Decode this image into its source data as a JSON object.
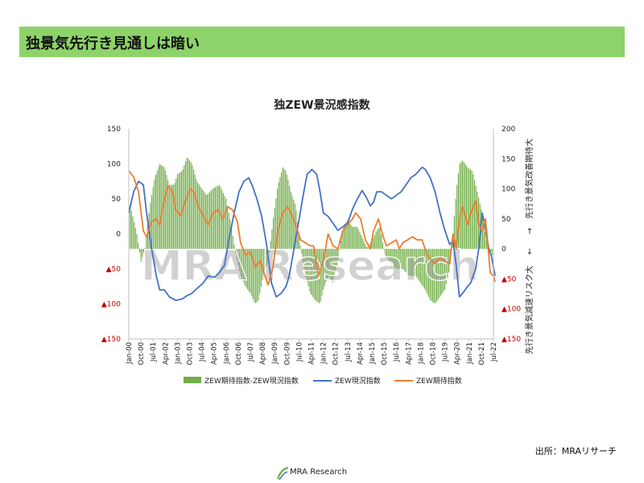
{
  "page": {
    "title": "独景気先行き見通しは暗い",
    "source": "出所：MRAリサーチ"
  },
  "watermark": "MRA Research",
  "footer_logo": "MRA Research",
  "colors": {
    "banner": "#8ed36a",
    "bars": "#70ad47",
    "current": "#4472c4",
    "expect": "#ed7d31",
    "negative_label": "#c00000"
  },
  "chart_data": {
    "type": "bar",
    "title": "独ZEW景況感指数",
    "left_axis": {
      "ylim": [
        -150,
        150
      ],
      "ticks": [
        150,
        100,
        50,
        0,
        -50,
        -100,
        -150
      ],
      "tick_labels": [
        "150",
        "100",
        "50",
        "0",
        "▲50",
        "▲100",
        "▲150"
      ]
    },
    "right_axis": {
      "ylim": [
        -150,
        200
      ],
      "ticks": [
        200,
        150,
        100,
        50,
        0,
        -50,
        -100,
        -150
      ],
      "tick_labels": [
        "200",
        "150",
        "100",
        "50",
        "0",
        "▲50",
        "▲100",
        "▲150"
      ],
      "label_top": "先行き景気改善期待大",
      "label_bottom": "先行き景気減速リスク大",
      "arrow_up": "→",
      "arrow_down": "←"
    },
    "x_labels": [
      "Jan-00",
      "Oct-00",
      "Jul-01",
      "Apr-02",
      "Jan-03",
      "Oct-03",
      "Jul-04",
      "Apr-05",
      "Jan-06",
      "Oct-06",
      "Jul-07",
      "Apr-08",
      "Jan-09",
      "Oct-09",
      "Jul-10",
      "Apr-11",
      "Jan-12",
      "Oct-12",
      "Jul-13",
      "Apr-14",
      "Jan-15",
      "Oct-15",
      "Jul-16",
      "Apr-17",
      "Jan-18",
      "Oct-18",
      "Jul-19",
      "Apr-20",
      "Jan-21",
      "Oct-21",
      "Jul-22"
    ],
    "x_start": "2000-01",
    "x_end": "2022-07",
    "series": [
      {
        "name": "ZEW期待指数-ZEW現況指数",
        "type": "bar",
        "axis": "left",
        "points": [
          [
            2000.0,
            50
          ],
          [
            2000.5,
            0
          ],
          [
            2000.75,
            -40
          ],
          [
            2001.0,
            -20
          ],
          [
            2001.3,
            40
          ],
          [
            2001.6,
            80
          ],
          [
            2001.9,
            100
          ],
          [
            2002.2,
            95
          ],
          [
            2002.5,
            70
          ],
          [
            2002.8,
            70
          ],
          [
            2003.0,
            85
          ],
          [
            2003.3,
            90
          ],
          [
            2003.6,
            110
          ],
          [
            2003.9,
            100
          ],
          [
            2004.2,
            75
          ],
          [
            2004.5,
            65
          ],
          [
            2004.8,
            55
          ],
          [
            2005.2,
            65
          ],
          [
            2005.6,
            70
          ],
          [
            2006.0,
            50
          ],
          [
            2006.3,
            15
          ],
          [
            2006.6,
            -30
          ],
          [
            2006.9,
            -60
          ],
          [
            2007.2,
            -75
          ],
          [
            2007.5,
            -85
          ],
          [
            2007.8,
            -100
          ],
          [
            2008.0,
            -95
          ],
          [
            2008.3,
            -60
          ],
          [
            2008.6,
            -40
          ],
          [
            2008.9,
            20
          ],
          [
            2009.2,
            70
          ],
          [
            2009.5,
            95
          ],
          [
            2009.7,
            90
          ],
          [
            2010.0,
            60
          ],
          [
            2010.3,
            40
          ],
          [
            2010.6,
            -20
          ],
          [
            2010.9,
            -60
          ],
          [
            2011.2,
            -85
          ],
          [
            2011.5,
            -95
          ],
          [
            2011.8,
            -100
          ],
          [
            2012.0,
            -80
          ],
          [
            2012.3,
            -60
          ],
          [
            2012.6,
            -70
          ],
          [
            2012.9,
            -40
          ],
          [
            2013.2,
            10
          ],
          [
            2013.5,
            20
          ],
          [
            2013.8,
            10
          ],
          [
            2014.1,
            10
          ],
          [
            2014.4,
            -5
          ],
          [
            2014.7,
            -20
          ],
          [
            2015.0,
            -10
          ],
          [
            2015.3,
            5
          ],
          [
            2015.5,
            10
          ],
          [
            2015.8,
            -30
          ],
          [
            2016.1,
            -40
          ],
          [
            2016.5,
            -50
          ],
          [
            2016.9,
            -50
          ],
          [
            2017.3,
            -60
          ],
          [
            2017.7,
            -60
          ],
          [
            2018.0,
            -70
          ],
          [
            2018.3,
            -80
          ],
          [
            2018.6,
            -95
          ],
          [
            2018.9,
            -100
          ],
          [
            2019.2,
            -90
          ],
          [
            2019.5,
            -80
          ],
          [
            2019.8,
            -50
          ],
          [
            2020.0,
            0
          ],
          [
            2020.2,
            60
          ],
          [
            2020.4,
            100
          ],
          [
            2020.6,
            105
          ],
          [
            2020.9,
            95
          ],
          [
            2021.2,
            90
          ],
          [
            2021.5,
            60
          ],
          [
            2021.8,
            30
          ],
          [
            2022.1,
            -10
          ],
          [
            2022.4,
            -30
          ],
          [
            2022.6,
            -40
          ]
        ]
      },
      {
        "name": "ZEW現況指数",
        "type": "line",
        "axis": "left",
        "points": [
          [
            2000.0,
            30
          ],
          [
            2000.3,
            60
          ],
          [
            2000.6,
            75
          ],
          [
            2000.9,
            70
          ],
          [
            2001.1,
            30
          ],
          [
            2001.4,
            -20
          ],
          [
            2001.7,
            -60
          ],
          [
            2001.9,
            -80
          ],
          [
            2002.2,
            -80
          ],
          [
            2002.5,
            -90
          ],
          [
            2002.9,
            -95
          ],
          [
            2003.3,
            -93
          ],
          [
            2003.6,
            -88
          ],
          [
            2003.9,
            -85
          ],
          [
            2004.2,
            -78
          ],
          [
            2004.6,
            -70
          ],
          [
            2004.9,
            -60
          ],
          [
            2005.3,
            -62
          ],
          [
            2005.6,
            -55
          ],
          [
            2005.9,
            -45
          ],
          [
            2006.2,
            -5
          ],
          [
            2006.5,
            30
          ],
          [
            2006.8,
            60
          ],
          [
            2007.1,
            75
          ],
          [
            2007.4,
            80
          ],
          [
            2007.6,
            70
          ],
          [
            2007.9,
            50
          ],
          [
            2008.2,
            25
          ],
          [
            2008.5,
            -15
          ],
          [
            2008.8,
            -70
          ],
          [
            2009.1,
            -90
          ],
          [
            2009.4,
            -85
          ],
          [
            2009.7,
            -75
          ],
          [
            2009.9,
            -60
          ],
          [
            2010.2,
            -20
          ],
          [
            2010.5,
            20
          ],
          [
            2010.8,
            60
          ],
          [
            2011.0,
            85
          ],
          [
            2011.3,
            92
          ],
          [
            2011.6,
            85
          ],
          [
            2011.8,
            60
          ],
          [
            2012.0,
            30
          ],
          [
            2012.3,
            25
          ],
          [
            2012.6,
            15
          ],
          [
            2012.9,
            5
          ],
          [
            2013.2,
            10
          ],
          [
            2013.5,
            15
          ],
          [
            2013.8,
            35
          ],
          [
            2014.1,
            50
          ],
          [
            2014.4,
            62
          ],
          [
            2014.7,
            50
          ],
          [
            2014.9,
            40
          ],
          [
            2015.1,
            45
          ],
          [
            2015.3,
            60
          ],
          [
            2015.6,
            60
          ],
          [
            2015.9,
            55
          ],
          [
            2016.2,
            50
          ],
          [
            2016.5,
            55
          ],
          [
            2016.8,
            60
          ],
          [
            2017.1,
            70
          ],
          [
            2017.4,
            80
          ],
          [
            2017.7,
            85
          ],
          [
            2017.9,
            90
          ],
          [
            2018.1,
            95
          ],
          [
            2018.3,
            92
          ],
          [
            2018.6,
            80
          ],
          [
            2018.9,
            60
          ],
          [
            2019.2,
            30
          ],
          [
            2019.5,
            5
          ],
          [
            2019.8,
            -15
          ],
          [
            2020.0,
            -10
          ],
          [
            2020.2,
            -45
          ],
          [
            2020.4,
            -90
          ],
          [
            2020.6,
            -85
          ],
          [
            2020.9,
            -75
          ],
          [
            2021.1,
            -70
          ],
          [
            2021.4,
            -50
          ],
          [
            2021.6,
            -20
          ],
          [
            2021.8,
            30
          ],
          [
            2022.0,
            10
          ],
          [
            2022.2,
            -20
          ],
          [
            2022.4,
            -35
          ],
          [
            2022.6,
            -60
          ]
        ]
      },
      {
        "name": "ZEW期待指数",
        "type": "line",
        "axis": "right",
        "points": [
          [
            2000.0,
            130
          ],
          [
            2000.3,
            120
          ],
          [
            2000.6,
            95
          ],
          [
            2000.9,
            30
          ],
          [
            2001.1,
            20
          ],
          [
            2001.4,
            45
          ],
          [
            2001.7,
            50
          ],
          [
            2001.9,
            40
          ],
          [
            2002.1,
            70
          ],
          [
            2002.4,
            105
          ],
          [
            2002.7,
            95
          ],
          [
            2002.9,
            65
          ],
          [
            2003.2,
            55
          ],
          [
            2003.5,
            80
          ],
          [
            2003.8,
            100
          ],
          [
            2004.0,
            95
          ],
          [
            2004.3,
            70
          ],
          [
            2004.6,
            55
          ],
          [
            2004.9,
            40
          ],
          [
            2005.2,
            60
          ],
          [
            2005.5,
            65
          ],
          [
            2005.8,
            50
          ],
          [
            2006.1,
            70
          ],
          [
            2006.4,
            65
          ],
          [
            2006.7,
            45
          ],
          [
            2006.9,
            10
          ],
          [
            2007.2,
            -10
          ],
          [
            2007.5,
            -5
          ],
          [
            2007.8,
            -30
          ],
          [
            2008.1,
            -20
          ],
          [
            2008.4,
            -45
          ],
          [
            2008.6,
            -60
          ],
          [
            2008.9,
            -30
          ],
          [
            2009.2,
            30
          ],
          [
            2009.5,
            60
          ],
          [
            2009.8,
            70
          ],
          [
            2010.0,
            60
          ],
          [
            2010.3,
            40
          ],
          [
            2010.6,
            15
          ],
          [
            2010.9,
            10
          ],
          [
            2011.2,
            5
          ],
          [
            2011.4,
            5
          ],
          [
            2011.7,
            -45
          ],
          [
            2012.0,
            -20
          ],
          [
            2012.3,
            25
          ],
          [
            2012.6,
            5
          ],
          [
            2012.9,
            0
          ],
          [
            2013.2,
            30
          ],
          [
            2013.5,
            40
          ],
          [
            2013.8,
            50
          ],
          [
            2014.0,
            60
          ],
          [
            2014.3,
            50
          ],
          [
            2014.6,
            15
          ],
          [
            2014.9,
            0
          ],
          [
            2015.1,
            30
          ],
          [
            2015.4,
            50
          ],
          [
            2015.7,
            20
          ],
          [
            2015.9,
            5
          ],
          [
            2016.2,
            10
          ],
          [
            2016.5,
            15
          ],
          [
            2016.7,
            0
          ],
          [
            2016.9,
            10
          ],
          [
            2017.2,
            15
          ],
          [
            2017.5,
            20
          ],
          [
            2017.8,
            15
          ],
          [
            2018.1,
            15
          ],
          [
            2018.4,
            -10
          ],
          [
            2018.7,
            -20
          ],
          [
            2018.9,
            -25
          ],
          [
            2019.2,
            -15
          ],
          [
            2019.5,
            -20
          ],
          [
            2019.8,
            -25
          ],
          [
            2020.0,
            25
          ],
          [
            2020.2,
            0
          ],
          [
            2020.4,
            50
          ],
          [
            2020.6,
            70
          ],
          [
            2020.9,
            40
          ],
          [
            2021.1,
            60
          ],
          [
            2021.4,
            80
          ],
          [
            2021.6,
            40
          ],
          [
            2021.8,
            30
          ],
          [
            2022.0,
            50
          ],
          [
            2022.1,
            25
          ],
          [
            2022.3,
            -40
          ],
          [
            2022.5,
            -45
          ],
          [
            2022.6,
            -55
          ]
        ]
      }
    ],
    "legend": {
      "placement": "bottom"
    },
    "grid": false
  }
}
